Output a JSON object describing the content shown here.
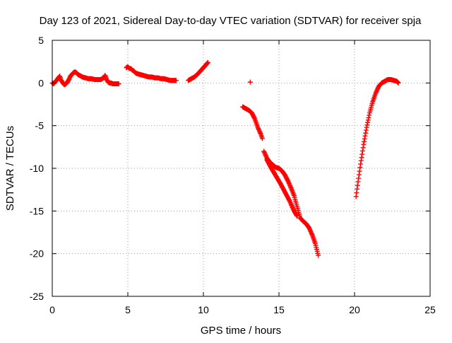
{
  "chart_data": {
    "type": "scatter",
    "title": "Day 123 of 2021, Sidereal Day-to-day VTEC variation (SDTVAR) for receiver spja",
    "xlabel": "GPS time / hours",
    "ylabel": "SDTVAR / TECUs",
    "xlim": [
      0,
      25
    ],
    "ylim": [
      -25,
      5
    ],
    "x_ticks": [
      0,
      5,
      10,
      15,
      20,
      25
    ],
    "y_ticks": [
      5,
      0,
      -5,
      -10,
      -15,
      -20,
      -25
    ],
    "grid": true,
    "legend": "none",
    "marker": "+",
    "series_color": "#ff0000",
    "series": [
      {
        "segments": [
          {
            "x": [
              0.0,
              0.1,
              0.2,
              0.3,
              0.4,
              0.5,
              0.6,
              0.7,
              0.8,
              0.9,
              1.0,
              1.1,
              1.2,
              1.3,
              1.4,
              1.5,
              1.6,
              1.7,
              1.8,
              1.9,
              2.0,
              2.2,
              2.4,
              2.6,
              2.8,
              3.0,
              3.2,
              3.4,
              3.5,
              3.6,
              3.7,
              3.8,
              3.9,
              4.0,
              4.2,
              4.4
            ],
            "y": [
              0.0,
              -0.1,
              0.2,
              0.3,
              0.6,
              0.8,
              0.3,
              0.0,
              -0.2,
              -0.1,
              0.1,
              0.4,
              0.8,
              1.0,
              1.2,
              1.3,
              1.2,
              1.0,
              0.9,
              0.8,
              0.7,
              0.6,
              0.5,
              0.5,
              0.4,
              0.4,
              0.4,
              0.6,
              0.9,
              0.4,
              0.1,
              0.0,
              0.0,
              -0.1,
              -0.1,
              -0.1
            ]
          },
          {
            "x": [
              4.9,
              5.0,
              5.1,
              5.2,
              5.3,
              5.4,
              5.5,
              5.6,
              5.8,
              6.0,
              6.2,
              6.4,
              6.6,
              6.8,
              7.0,
              7.2,
              7.4,
              7.6,
              7.8,
              8.0,
              8.2
            ],
            "y": [
              1.8,
              1.9,
              1.7,
              1.7,
              1.5,
              1.4,
              1.2,
              1.1,
              1.0,
              0.9,
              0.8,
              0.7,
              0.7,
              0.6,
              0.6,
              0.5,
              0.5,
              0.4,
              0.3,
              0.3,
              0.3
            ]
          },
          {
            "x": [
              9.0,
              9.2,
              9.4,
              9.6,
              9.8,
              10.0,
              10.1,
              10.2,
              10.3
            ],
            "y": [
              0.3,
              0.5,
              0.7,
              1.0,
              1.4,
              1.8,
              2.0,
              2.2,
              2.4
            ]
          },
          {
            "x": [
              12.6,
              12.8,
              13.0,
              13.2,
              13.4,
              13.6,
              13.8,
              13.9
            ],
            "y": [
              -2.8,
              -3.0,
              -3.2,
              -3.5,
              -4.2,
              -5.2,
              -6.0,
              -6.5
            ]
          },
          {
            "x": [
              13.1
            ],
            "y": [
              0.1
            ]
          },
          {
            "x": [
              14.0,
              14.2,
              14.4,
              14.6,
              14.8,
              15.0,
              15.2,
              15.4,
              15.6,
              15.8,
              16.0,
              16.2,
              16.4,
              16.6,
              16.8,
              17.0,
              17.2,
              17.4,
              17.6
            ],
            "y": [
              -8.0,
              -8.8,
              -9.3,
              -9.6,
              -9.9,
              -10.0,
              -10.3,
              -10.8,
              -11.5,
              -12.3,
              -13.2,
              -14.5,
              -15.8,
              -16.2,
              -16.5,
              -17.0,
              -17.8,
              -18.8,
              -20.2
            ]
          },
          {
            "x": [
              14.2,
              14.5,
              14.8,
              15.1,
              15.4,
              15.7,
              16.0,
              16.2
            ],
            "y": [
              -9.0,
              -10.0,
              -10.9,
              -11.8,
              -12.8,
              -13.8,
              -15.0,
              -15.6
            ]
          },
          {
            "x": [
              20.1,
              20.2,
              20.4,
              20.6,
              20.8,
              21.0,
              21.2,
              21.4,
              21.6,
              21.8,
              22.0,
              22.2,
              22.4,
              22.6,
              22.8,
              22.9
            ],
            "y": [
              -13.3,
              -12.0,
              -9.5,
              -7.2,
              -5.2,
              -3.5,
              -2.2,
              -1.2,
              -0.4,
              0.0,
              0.2,
              0.4,
              0.4,
              0.3,
              0.2,
              0.0
            ]
          }
        ]
      }
    ]
  }
}
